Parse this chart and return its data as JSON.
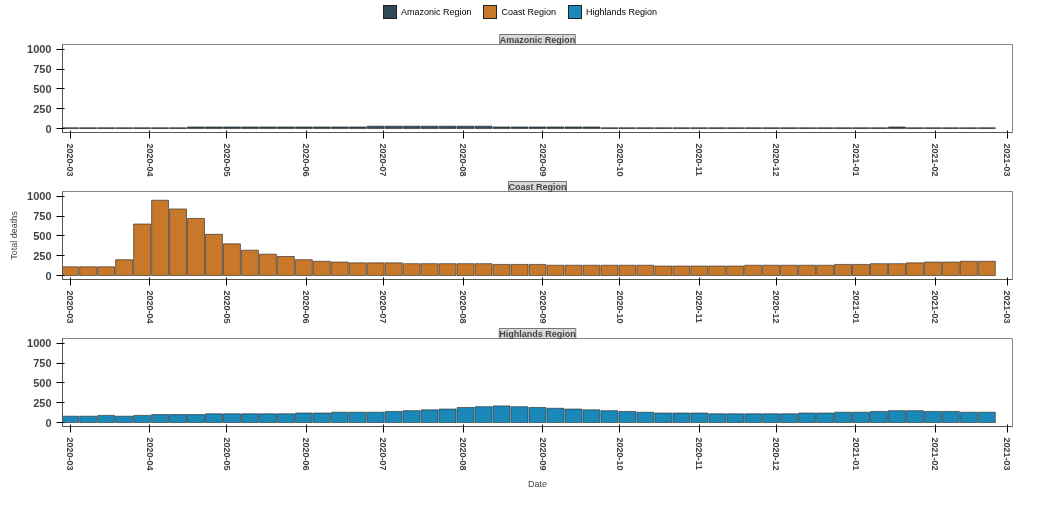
{
  "chart_data": [
    {
      "type": "bar",
      "title": "Amazonic Region",
      "legend": "top",
      "xlim": [
        "2020-02-27",
        "2021-03-03"
      ],
      "ylim": [
        -50,
        1060
      ],
      "yticks": [
        0,
        250,
        500,
        750,
        1000
      ],
      "xticks": [
        "2020-03",
        "2020-04",
        "2020-05",
        "2020-06",
        "2020-07",
        "2020-08",
        "2020-09",
        "2020-10",
        "2020-11",
        "2020-12",
        "2021-01",
        "2021-02",
        "2021-03"
      ],
      "x": [
        "2020-03-01",
        "2020-03-08",
        "2020-03-15",
        "2020-03-22",
        "2020-03-29",
        "2020-04-05",
        "2020-04-12",
        "2020-04-19",
        "2020-04-26",
        "2020-05-03",
        "2020-05-10",
        "2020-05-17",
        "2020-05-24",
        "2020-05-31",
        "2020-06-07",
        "2020-06-14",
        "2020-06-21",
        "2020-06-28",
        "2020-07-05",
        "2020-07-12",
        "2020-07-19",
        "2020-07-26",
        "2020-08-02",
        "2020-08-09",
        "2020-08-16",
        "2020-08-23",
        "2020-08-30",
        "2020-09-06",
        "2020-09-13",
        "2020-09-20",
        "2020-09-27",
        "2020-10-04",
        "2020-10-11",
        "2020-10-18",
        "2020-10-25",
        "2020-11-01",
        "2020-11-08",
        "2020-11-15",
        "2020-11-22",
        "2020-11-29",
        "2020-12-06",
        "2020-12-13",
        "2020-12-20",
        "2020-12-27",
        "2021-01-03",
        "2021-01-10",
        "2021-01-17",
        "2021-01-24",
        "2021-01-31",
        "2021-02-07",
        "2021-02-14",
        "2021-02-21"
      ],
      "series": [
        {
          "name": "Amazonic Region",
          "color": "#2f4b5a",
          "values": [
            10,
            10,
            10,
            10,
            10,
            10,
            10,
            20,
            20,
            20,
            20,
            20,
            20,
            20,
            20,
            20,
            20,
            30,
            30,
            30,
            30,
            30,
            30,
            30,
            20,
            20,
            20,
            20,
            20,
            20,
            10,
            10,
            10,
            10,
            10,
            10,
            10,
            10,
            10,
            10,
            10,
            10,
            10,
            10,
            10,
            10,
            20,
            10,
            10,
            10,
            10,
            10
          ]
        }
      ]
    },
    {
      "type": "bar",
      "title": "Coast Region",
      "ylabel": "Total deaths",
      "legend": "top",
      "xlim": [
        "2020-02-27",
        "2021-03-03"
      ],
      "ylim": [
        -50,
        1060
      ],
      "yticks": [
        0,
        250,
        500,
        750,
        1000
      ],
      "xticks": [
        "2020-03",
        "2020-04",
        "2020-05",
        "2020-06",
        "2020-07",
        "2020-08",
        "2020-09",
        "2020-10",
        "2020-11",
        "2020-12",
        "2021-01",
        "2021-02",
        "2021-03"
      ],
      "x": [
        "2020-03-01",
        "2020-03-08",
        "2020-03-15",
        "2020-03-22",
        "2020-03-29",
        "2020-04-05",
        "2020-04-12",
        "2020-04-19",
        "2020-04-26",
        "2020-05-03",
        "2020-05-10",
        "2020-05-17",
        "2020-05-24",
        "2020-05-31",
        "2020-06-07",
        "2020-06-14",
        "2020-06-21",
        "2020-06-28",
        "2020-07-05",
        "2020-07-12",
        "2020-07-19",
        "2020-07-26",
        "2020-08-02",
        "2020-08-09",
        "2020-08-16",
        "2020-08-23",
        "2020-08-30",
        "2020-09-06",
        "2020-09-13",
        "2020-09-20",
        "2020-09-27",
        "2020-10-04",
        "2020-10-11",
        "2020-10-18",
        "2020-10-25",
        "2020-11-01",
        "2020-11-08",
        "2020-11-15",
        "2020-11-22",
        "2020-11-29",
        "2020-12-06",
        "2020-12-13",
        "2020-12-20",
        "2020-12-27",
        "2021-01-03",
        "2021-01-10",
        "2021-01-17",
        "2021-01-24",
        "2021-01-31",
        "2021-02-07",
        "2021-02-14",
        "2021-02-21"
      ],
      "series": [
        {
          "name": "Coast Region",
          "color": "#c8782a",
          "values": [
            110,
            110,
            110,
            200,
            650,
            950,
            840,
            720,
            520,
            400,
            320,
            270,
            240,
            200,
            180,
            170,
            160,
            160,
            160,
            150,
            150,
            150,
            150,
            150,
            140,
            140,
            140,
            130,
            130,
            130,
            130,
            130,
            130,
            120,
            120,
            120,
            120,
            120,
            130,
            130,
            130,
            130,
            130,
            140,
            140,
            150,
            150,
            160,
            170,
            170,
            180,
            180
          ]
        }
      ]
    },
    {
      "type": "bar",
      "title": "Highlands Region",
      "xlabel": "Date",
      "legend": "top",
      "xlim": [
        "2020-02-27",
        "2021-03-03"
      ],
      "ylim": [
        -50,
        1060
      ],
      "yticks": [
        0,
        250,
        500,
        750,
        1000
      ],
      "xticks": [
        "2020-03",
        "2020-04",
        "2020-05",
        "2020-06",
        "2020-07",
        "2020-08",
        "2020-09",
        "2020-10",
        "2020-11",
        "2020-12",
        "2021-01",
        "2021-02",
        "2021-03"
      ],
      "x": [
        "2020-03-01",
        "2020-03-08",
        "2020-03-15",
        "2020-03-22",
        "2020-03-29",
        "2020-04-05",
        "2020-04-12",
        "2020-04-19",
        "2020-04-26",
        "2020-05-03",
        "2020-05-10",
        "2020-05-17",
        "2020-05-24",
        "2020-05-31",
        "2020-06-07",
        "2020-06-14",
        "2020-06-21",
        "2020-06-28",
        "2020-07-05",
        "2020-07-12",
        "2020-07-19",
        "2020-07-26",
        "2020-08-02",
        "2020-08-09",
        "2020-08-16",
        "2020-08-23",
        "2020-08-30",
        "2020-09-06",
        "2020-09-13",
        "2020-09-20",
        "2020-09-27",
        "2020-10-04",
        "2020-10-11",
        "2020-10-18",
        "2020-10-25",
        "2020-11-01",
        "2020-11-08",
        "2020-11-15",
        "2020-11-22",
        "2020-11-29",
        "2020-12-06",
        "2020-12-13",
        "2020-12-20",
        "2020-12-27",
        "2021-01-03",
        "2021-01-10",
        "2021-01-17",
        "2021-01-24",
        "2021-01-31",
        "2021-02-07",
        "2021-02-14",
        "2021-02-21"
      ],
      "series": [
        {
          "name": "Highlands Region",
          "color": "#1a88b8",
          "values": [
            80,
            80,
            90,
            80,
            90,
            100,
            100,
            100,
            110,
            110,
            110,
            110,
            110,
            120,
            120,
            130,
            130,
            130,
            140,
            150,
            160,
            170,
            190,
            200,
            210,
            200,
            190,
            180,
            170,
            160,
            150,
            140,
            130,
            120,
            120,
            120,
            110,
            110,
            110,
            110,
            110,
            120,
            120,
            130,
            130,
            140,
            150,
            150,
            140,
            140,
            130,
            130
          ]
        }
      ]
    }
  ]
}
